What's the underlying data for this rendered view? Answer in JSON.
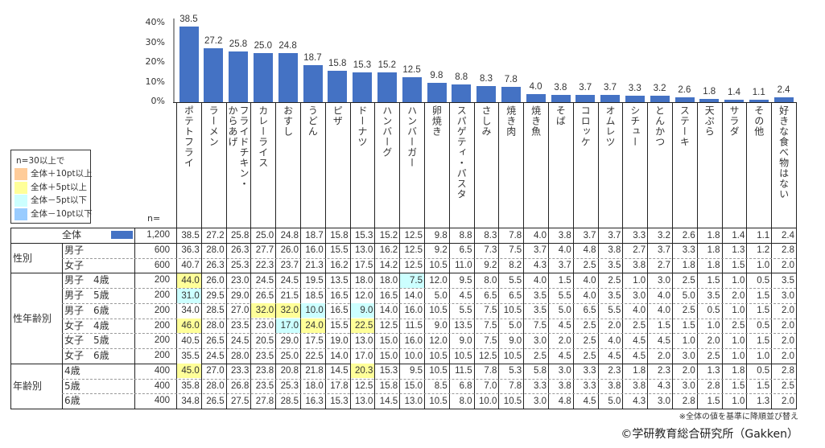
{
  "chart_data": {
    "type": "bar",
    "title": "",
    "ylabel": "",
    "ylim": [
      0,
      40
    ],
    "yticks": [
      "0%",
      "10%",
      "20%",
      "30%",
      "40%"
    ],
    "bar_color": "#4472c4",
    "categories": [
      [
        "ポテトフライ"
      ],
      [
        "ラーメン"
      ],
      [
        "フライドチキン・",
        "からあげ"
      ],
      [
        "カレーライス"
      ],
      [
        "おすし"
      ],
      [
        "うどん"
      ],
      [
        "ピザ"
      ],
      [
        "ドーナツ"
      ],
      [
        "ハンバーグ"
      ],
      [
        "ハンバーガー"
      ],
      [
        "卵焼き"
      ],
      [
        "スパゲティ・パスタ"
      ],
      [
        "さしみ"
      ],
      [
        "焼き肉"
      ],
      [
        "焼き魚"
      ],
      [
        "そば"
      ],
      [
        "コロッケ"
      ],
      [
        "オムレツ"
      ],
      [
        "シチュー"
      ],
      [
        "とんかつ"
      ],
      [
        "ステーキ"
      ],
      [
        "天ぷら"
      ],
      [
        "サラダ"
      ],
      [
        "その他"
      ],
      [
        "好きな食べ物はない"
      ]
    ],
    "values": [
      38.5,
      27.2,
      25.8,
      25.0,
      24.8,
      18.7,
      15.8,
      15.3,
      15.2,
      12.5,
      9.8,
      8.8,
      8.3,
      7.8,
      4.0,
      3.8,
      3.7,
      3.7,
      3.3,
      3.2,
      2.6,
      1.8,
      1.4,
      1.1,
      2.4
    ],
    "value_labels": [
      "38.5",
      "27.2",
      "25.8",
      "25.0",
      "24.8",
      "18.7",
      "15.8",
      "15.3",
      "15.2",
      "12.5",
      "9.8",
      "8.8",
      "8.3",
      "7.8",
      "4.0",
      "3.8",
      "3.7",
      "3.7",
      "3.3",
      "3.2",
      "2.6",
      "1.8",
      "1.4",
      "1.1",
      "2.4"
    ]
  },
  "n_header": "n=",
  "legend": {
    "title": "n=30以上で",
    "items": [
      {
        "label": "全体＋10pt以上",
        "color": "#ffcc99",
        "code": "o"
      },
      {
        "label": "全体＋5pt以上",
        "color": "#ffff99",
        "code": "y"
      },
      {
        "label": "全体－5pt以下",
        "color": "#ccffff",
        "code": "c"
      },
      {
        "label": "全体－10pt以下",
        "color": "#99ccff",
        "code": "b"
      }
    ]
  },
  "groups": [
    {
      "label": "性別",
      "start": 1,
      "count": 2
    },
    {
      "label": "性年齢別",
      "start": 3,
      "count": 6
    },
    {
      "label": "年齢別",
      "start": 9,
      "count": 3
    }
  ],
  "table": [
    {
      "label": "全体",
      "n": "1,200",
      "values": [
        "38.5",
        "27.2",
        "25.8",
        "25.0",
        "24.8",
        "18.7",
        "15.8",
        "15.3",
        "15.2",
        "12.5",
        "9.8",
        "8.8",
        "8.3",
        "7.8",
        "4.0",
        "3.8",
        "3.7",
        "3.7",
        "3.3",
        "3.2",
        "2.6",
        "1.8",
        "1.4",
        "1.1",
        "2.4"
      ],
      "hl": {}
    },
    {
      "label": "男子",
      "n": "600",
      "values": [
        "36.3",
        "28.0",
        "26.3",
        "27.7",
        "26.0",
        "16.0",
        "15.5",
        "13.0",
        "16.2",
        "12.5",
        "9.2",
        "6.5",
        "7.3",
        "7.5",
        "3.7",
        "4.0",
        "4.8",
        "3.8",
        "2.7",
        "3.7",
        "3.3",
        "1.8",
        "1.3",
        "1.2",
        "2.8"
      ],
      "hl": {}
    },
    {
      "label": "女子",
      "n": "600",
      "values": [
        "40.7",
        "26.3",
        "25.3",
        "22.3",
        "23.7",
        "21.3",
        "16.2",
        "17.5",
        "14.2",
        "12.5",
        "10.5",
        "11.0",
        "9.2",
        "8.2",
        "4.3",
        "3.7",
        "2.5",
        "3.5",
        "3.8",
        "2.7",
        "1.8",
        "1.8",
        "1.5",
        "1.0",
        "2.0"
      ],
      "hl": {}
    },
    {
      "label": "男子　4歳",
      "n": "200",
      "values": [
        "44.0",
        "26.0",
        "23.0",
        "24.5",
        "24.5",
        "19.5",
        "13.5",
        "18.0",
        "18.0",
        "7.5",
        "12.0",
        "9.5",
        "8.0",
        "5.5",
        "4.0",
        "1.5",
        "4.0",
        "2.5",
        "1.0",
        "3.0",
        "2.5",
        "1.5",
        "1.0",
        "0.5",
        "3.5"
      ],
      "hl": {
        "0": "y",
        "9": "c"
      }
    },
    {
      "label": "男子　5歳",
      "n": "200",
      "values": [
        "31.0",
        "29.5",
        "29.0",
        "26.5",
        "21.5",
        "18.5",
        "16.5",
        "12.0",
        "16.5",
        "14.0",
        "5.0",
        "4.5",
        "6.5",
        "6.5",
        "3.5",
        "5.5",
        "4.0",
        "3.5",
        "3.0",
        "4.0",
        "5.0",
        "3.5",
        "2.0",
        "1.5",
        "3.0"
      ],
      "hl": {
        "0": "c"
      }
    },
    {
      "label": "男子　6歳",
      "n": "200",
      "values": [
        "34.0",
        "28.5",
        "27.0",
        "32.0",
        "32.0",
        "10.0",
        "16.5",
        "9.0",
        "14.0",
        "16.0",
        "10.5",
        "5.5",
        "7.5",
        "10.5",
        "3.5",
        "5.0",
        "6.5",
        "5.5",
        "4.0",
        "4.0",
        "2.5",
        "0.5",
        "1.0",
        "1.5",
        "2.0"
      ],
      "hl": {
        "3": "y",
        "4": "y",
        "5": "c",
        "7": "c"
      }
    },
    {
      "label": "女子　4歳",
      "n": "200",
      "values": [
        "46.0",
        "28.0",
        "23.5",
        "23.0",
        "17.0",
        "24.0",
        "15.5",
        "22.5",
        "12.5",
        "11.5",
        "9.0",
        "13.5",
        "7.5",
        "5.0",
        "7.5",
        "4.5",
        "2.5",
        "2.0",
        "2.5",
        "1.5",
        "1.5",
        "1.0",
        "2.5",
        "0.5",
        "2.0"
      ],
      "hl": {
        "0": "y",
        "4": "c",
        "5": "y",
        "7": "y"
      }
    },
    {
      "label": "女子　5歳",
      "n": "200",
      "values": [
        "40.5",
        "26.5",
        "24.5",
        "20.5",
        "29.0",
        "17.5",
        "19.0",
        "13.0",
        "15.0",
        "16.0",
        "12.0",
        "9.0",
        "7.5",
        "9.0",
        "3.0",
        "2.0",
        "2.5",
        "4.0",
        "4.5",
        "4.5",
        "1.0",
        "2.0",
        "1.0",
        "1.5",
        "2.0"
      ],
      "hl": {}
    },
    {
      "label": "女子　6歳",
      "n": "200",
      "values": [
        "35.5",
        "24.5",
        "28.0",
        "23.5",
        "25.0",
        "22.5",
        "14.0",
        "17.0",
        "15.0",
        "10.0",
        "10.5",
        "10.5",
        "12.5",
        "10.5",
        "2.5",
        "4.5",
        "2.5",
        "4.5",
        "4.5",
        "2.0",
        "3.0",
        "2.5",
        "1.0",
        "1.0",
        "2.0"
      ],
      "hl": {}
    },
    {
      "label": "4歳",
      "n": "400",
      "values": [
        "45.0",
        "27.0",
        "23.3",
        "23.8",
        "20.8",
        "21.8",
        "14.5",
        "20.3",
        "15.3",
        "9.5",
        "10.5",
        "11.5",
        "7.8",
        "5.3",
        "5.8",
        "3.0",
        "3.3",
        "2.3",
        "1.8",
        "2.3",
        "2.0",
        "1.3",
        "1.8",
        "0.5",
        "2.8"
      ],
      "hl": {
        "0": "y",
        "7": "y"
      }
    },
    {
      "label": "5歳",
      "n": "400",
      "values": [
        "35.8",
        "28.0",
        "26.8",
        "23.5",
        "25.3",
        "18.0",
        "17.8",
        "12.5",
        "15.8",
        "15.0",
        "8.5",
        "6.8",
        "7.0",
        "7.8",
        "3.3",
        "3.8",
        "3.3",
        "3.8",
        "3.8",
        "4.3",
        "3.0",
        "2.8",
        "1.5",
        "1.5",
        "2.5"
      ],
      "hl": {}
    },
    {
      "label": "6歳",
      "n": "400",
      "values": [
        "34.8",
        "26.5",
        "27.5",
        "27.8",
        "28.5",
        "16.3",
        "15.3",
        "13.0",
        "14.5",
        "13.0",
        "10.5",
        "8.0",
        "10.0",
        "10.5",
        "3.0",
        "4.8",
        "4.5",
        "5.0",
        "4.3",
        "3.0",
        "2.8",
        "1.5",
        "1.0",
        "1.3",
        "2.0"
      ],
      "hl": {}
    }
  ],
  "footnote": "※全体の値を基準に降順並び替え",
  "copyright": "©学研教育総合研究所（Gakken）"
}
